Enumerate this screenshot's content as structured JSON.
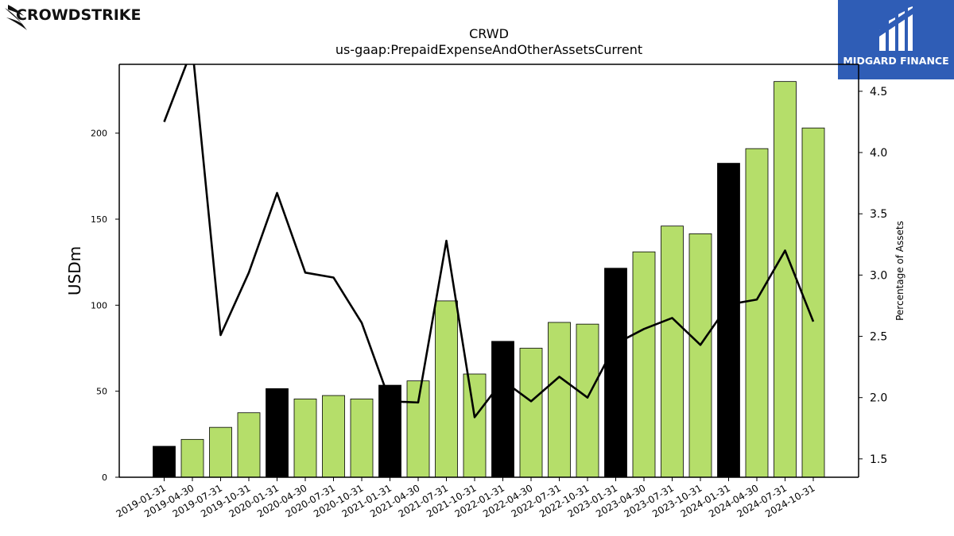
{
  "brand_left": {
    "name": "CROWDSTRIKE",
    "icon": "falcon-icon"
  },
  "brand_right": {
    "name": "MIDGARD FINANCE",
    "icon": "midgard-m-icon",
    "color": "#2f5db6"
  },
  "chart_data": {
    "type": "bar",
    "title": "CRWD",
    "subtitle": "us-gaap:PrepaidExpenseAndOtherAssetsCurrent",
    "ylabel": "USDm",
    "y2label": "Percentage of Assets",
    "ylim": [
      0,
      240
    ],
    "y2lim": [
      1.35,
      4.72
    ],
    "yticks": [
      0,
      50,
      100,
      150,
      200
    ],
    "y2ticks": [
      1.5,
      2.0,
      2.5,
      3.0,
      3.5,
      4.0,
      4.5
    ],
    "categories": [
      "2019-01-31",
      "2019-04-30",
      "2019-07-31",
      "2019-10-31",
      "2020-01-31",
      "2020-04-30",
      "2020-07-31",
      "2020-10-31",
      "2021-01-31",
      "2021-04-30",
      "2021-07-31",
      "2021-10-31",
      "2022-01-31",
      "2022-04-30",
      "2022-07-31",
      "2022-10-31",
      "2023-01-31",
      "2023-04-30",
      "2023-07-31",
      "2023-10-31",
      "2024-01-31",
      "2024-04-30",
      "2024-07-31",
      "2024-10-31"
    ],
    "series": [
      {
        "type": "bar",
        "values": [
          18,
          22,
          29,
          37.5,
          51.5,
          45.5,
          47.5,
          45.5,
          53.5,
          56,
          102.5,
          60,
          79,
          75,
          90,
          89,
          121.5,
          131,
          146,
          141.5,
          182.5,
          191,
          230,
          203
        ]
      },
      {
        "type": "line",
        "axis": "right",
        "values": [
          4.25,
          4.85,
          2.51,
          3.02,
          3.67,
          3.02,
          2.98,
          2.61,
          1.97,
          1.96,
          3.28,
          1.84,
          2.14,
          1.97,
          2.17,
          2.0,
          2.44,
          2.56,
          2.65,
          2.43,
          2.76,
          2.8,
          3.2,
          2.62
        ]
      }
    ],
    "annual_color": "#000000",
    "quarter_color": "#b5de6a",
    "line_color": "#000000",
    "grid": false,
    "legend": "none"
  }
}
